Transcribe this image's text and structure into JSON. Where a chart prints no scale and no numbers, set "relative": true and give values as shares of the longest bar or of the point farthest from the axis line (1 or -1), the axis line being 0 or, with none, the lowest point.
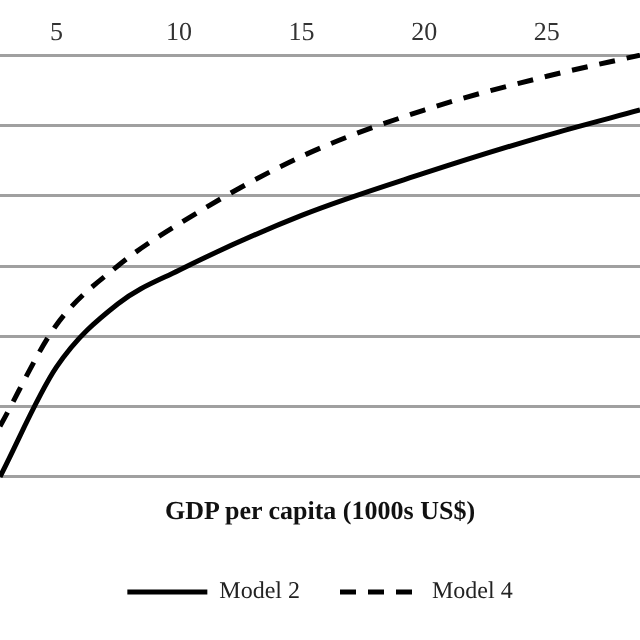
{
  "chart_data": {
    "type": "line",
    "xlabel": "GDP per capita (1000s US$)",
    "relative": true,
    "xlim": [
      2.7,
      28.8
    ],
    "xticks": [
      5,
      10,
      15,
      20,
      25
    ],
    "grid": "y",
    "legend": "bottom",
    "marker": "none",
    "series": [
      {
        "name": "Model 2",
        "color": "#000000",
        "line_style": "solid",
        "x": [
          2.7,
          5,
          7.5,
          10,
          15,
          20,
          25,
          28.8
        ],
        "values": [
          0,
          0.26,
          0.41,
          0.49,
          0.62,
          0.72,
          0.81,
          0.87
        ]
      },
      {
        "name": "Model 4",
        "color": "#000000",
        "line_style": "dashed",
        "x": [
          2.7,
          5,
          7.5,
          10,
          15,
          20,
          25,
          28.8
        ],
        "values": [
          0.12,
          0.36,
          0.5,
          0.6,
          0.76,
          0.87,
          0.95,
          1
        ]
      }
    ]
  }
}
